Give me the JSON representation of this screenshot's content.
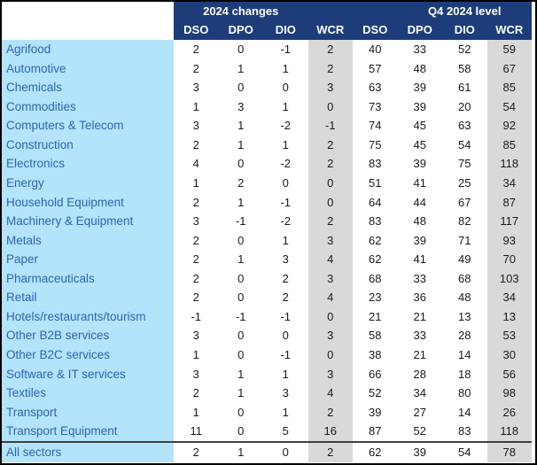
{
  "colors": {
    "header_navy": "#1d3d7a",
    "header_text": "#ffffff",
    "label_bg_blue": "#b3e4fc",
    "label_text_blue": "#2e64b2",
    "wcr_column_gray": "#d9d9d9",
    "value_text": "#1a1a1a",
    "frame_border": "#000000",
    "total_separator": "#3f3f3f"
  },
  "table": {
    "col_group_headers": [
      {
        "label": "2024 changes"
      },
      {
        "label": "Q4 2024 level"
      }
    ],
    "column_headers": [
      "DSO",
      "DPO",
      "DIO",
      "WCR",
      "DSO",
      "DPO",
      "DIO",
      "WCR"
    ],
    "rows": [
      {
        "sector": "Agrifood",
        "values": [
          2,
          0,
          -1,
          2,
          40,
          33,
          52,
          59
        ]
      },
      {
        "sector": "Automotive",
        "values": [
          2,
          1,
          1,
          2,
          57,
          48,
          58,
          67
        ]
      },
      {
        "sector": "Chemicals",
        "values": [
          3,
          0,
          0,
          3,
          63,
          39,
          61,
          85
        ]
      },
      {
        "sector": "Commodities",
        "values": [
          1,
          3,
          1,
          0,
          73,
          39,
          20,
          54
        ]
      },
      {
        "sector": "Computers & Telecom",
        "values": [
          3,
          1,
          -2,
          -1,
          74,
          45,
          63,
          92
        ]
      },
      {
        "sector": "Construction",
        "values": [
          2,
          1,
          1,
          2,
          75,
          45,
          54,
          85
        ]
      },
      {
        "sector": "Electronics",
        "values": [
          4,
          0,
          -2,
          2,
          83,
          39,
          75,
          118
        ]
      },
      {
        "sector": "Energy",
        "values": [
          1,
          2,
          0,
          0,
          51,
          41,
          25,
          34
        ]
      },
      {
        "sector": "Household Equipment",
        "values": [
          2,
          1,
          -1,
          0,
          64,
          44,
          67,
          87
        ]
      },
      {
        "sector": "Machinery & Equipment",
        "values": [
          3,
          -1,
          -2,
          2,
          83,
          48,
          82,
          117
        ]
      },
      {
        "sector": "Metals",
        "values": [
          2,
          0,
          1,
          3,
          62,
          39,
          71,
          93
        ]
      },
      {
        "sector": "Paper",
        "values": [
          2,
          1,
          3,
          4,
          62,
          41,
          49,
          70
        ]
      },
      {
        "sector": "Pharmaceuticals",
        "values": [
          2,
          0,
          2,
          3,
          68,
          33,
          68,
          103
        ]
      },
      {
        "sector": "Retail",
        "values": [
          2,
          0,
          2,
          4,
          23,
          36,
          48,
          34
        ]
      },
      {
        "sector": "Hotels/restaurants/tourism",
        "values": [
          -1,
          -1,
          -1,
          0,
          21,
          21,
          13,
          13
        ]
      },
      {
        "sector": "Other B2B services",
        "values": [
          3,
          0,
          0,
          3,
          58,
          33,
          28,
          53
        ]
      },
      {
        "sector": "Other B2C services",
        "values": [
          1,
          0,
          -1,
          0,
          38,
          21,
          14,
          30
        ]
      },
      {
        "sector": "Software & IT services",
        "values": [
          3,
          1,
          1,
          3,
          66,
          28,
          18,
          56
        ]
      },
      {
        "sector": "Textiles",
        "values": [
          2,
          1,
          3,
          4,
          52,
          34,
          80,
          98
        ]
      },
      {
        "sector": "Transport",
        "values": [
          1,
          0,
          1,
          2,
          39,
          27,
          14,
          26
        ]
      },
      {
        "sector": "Transport Equipment",
        "values": [
          11,
          0,
          5,
          16,
          87,
          52,
          83,
          118
        ]
      }
    ],
    "total_row": {
      "sector": "All sectors",
      "values": [
        2,
        1,
        0,
        2,
        62,
        39,
        54,
        78
      ]
    }
  },
  "chart_data": {
    "type": "table",
    "title": "",
    "column_groups": [
      "2024 changes",
      "Q4 2024 level"
    ],
    "columns": [
      "2024 changes DSO",
      "2024 changes DPO",
      "2024 changes DIO",
      "2024 changes WCR",
      "Q4 2024 level DSO",
      "Q4 2024 level DPO",
      "Q4 2024 level DIO",
      "Q4 2024 level WCR"
    ],
    "row_labels": [
      "Agrifood",
      "Automotive",
      "Chemicals",
      "Commodities",
      "Computers & Telecom",
      "Construction",
      "Electronics",
      "Energy",
      "Household Equipment",
      "Machinery & Equipment",
      "Metals",
      "Paper",
      "Pharmaceuticals",
      "Retail",
      "Hotels/restaurants/tourism",
      "Other B2B services",
      "Other B2C services",
      "Software & IT services",
      "Textiles",
      "Transport",
      "Transport Equipment",
      "All sectors"
    ],
    "values": [
      [
        2,
        0,
        -1,
        2,
        40,
        33,
        52,
        59
      ],
      [
        2,
        1,
        1,
        2,
        57,
        48,
        58,
        67
      ],
      [
        3,
        0,
        0,
        3,
        63,
        39,
        61,
        85
      ],
      [
        1,
        3,
        1,
        0,
        73,
        39,
        20,
        54
      ],
      [
        3,
        1,
        -2,
        -1,
        74,
        45,
        63,
        92
      ],
      [
        2,
        1,
        1,
        2,
        75,
        45,
        54,
        85
      ],
      [
        4,
        0,
        -2,
        2,
        83,
        39,
        75,
        118
      ],
      [
        1,
        2,
        0,
        0,
        51,
        41,
        25,
        34
      ],
      [
        2,
        1,
        -1,
        0,
        64,
        44,
        67,
        87
      ],
      [
        3,
        -1,
        -2,
        2,
        83,
        48,
        82,
        117
      ],
      [
        2,
        0,
        1,
        3,
        62,
        39,
        71,
        93
      ],
      [
        2,
        1,
        3,
        4,
        62,
        41,
        49,
        70
      ],
      [
        2,
        0,
        2,
        3,
        68,
        33,
        68,
        103
      ],
      [
        2,
        0,
        2,
        4,
        23,
        36,
        48,
        34
      ],
      [
        -1,
        -1,
        -1,
        0,
        21,
        21,
        13,
        13
      ],
      [
        3,
        0,
        0,
        3,
        58,
        33,
        28,
        53
      ],
      [
        1,
        0,
        -1,
        0,
        38,
        21,
        14,
        30
      ],
      [
        3,
        1,
        1,
        3,
        66,
        28,
        18,
        56
      ],
      [
        2,
        1,
        3,
        4,
        52,
        34,
        80,
        98
      ],
      [
        1,
        0,
        1,
        2,
        39,
        27,
        14,
        26
      ],
      [
        11,
        0,
        5,
        16,
        87,
        52,
        83,
        118
      ],
      [
        2,
        1,
        0,
        2,
        62,
        39,
        54,
        78
      ]
    ]
  }
}
